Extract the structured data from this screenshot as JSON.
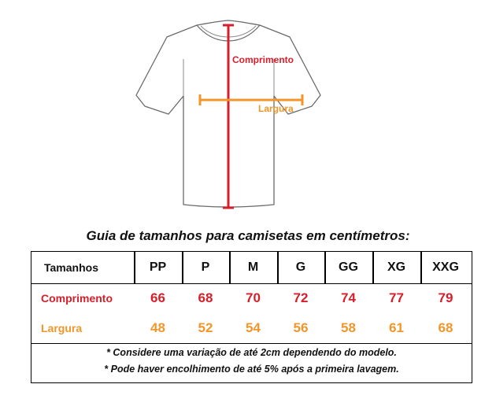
{
  "diagram": {
    "comprimento_label": "Comprimento",
    "largura_label": "Largura"
  },
  "guide_title": "Guia de tamanhos para camisetas em centímetros:",
  "table": {
    "header": [
      "Tamanhos",
      "PP",
      "P",
      "M",
      "G",
      "GG",
      "XG",
      "XXG"
    ],
    "rows": [
      {
        "label": "Comprimento",
        "values": [
          "66",
          "68",
          "70",
          "72",
          "74",
          "77",
          "79"
        ]
      },
      {
        "label": "Largura",
        "values": [
          "48",
          "52",
          "54",
          "56",
          "58",
          "61",
          "68"
        ]
      }
    ]
  },
  "notes": [
    "* Considere uma variação de até 2cm dependendo do modelo.",
    "* Pode haver encolhimento de até 5% após a primeira lavagem."
  ],
  "colors": {
    "comprimento": "#d61f2b",
    "largura": "#f0962a",
    "outline": "#666666"
  }
}
